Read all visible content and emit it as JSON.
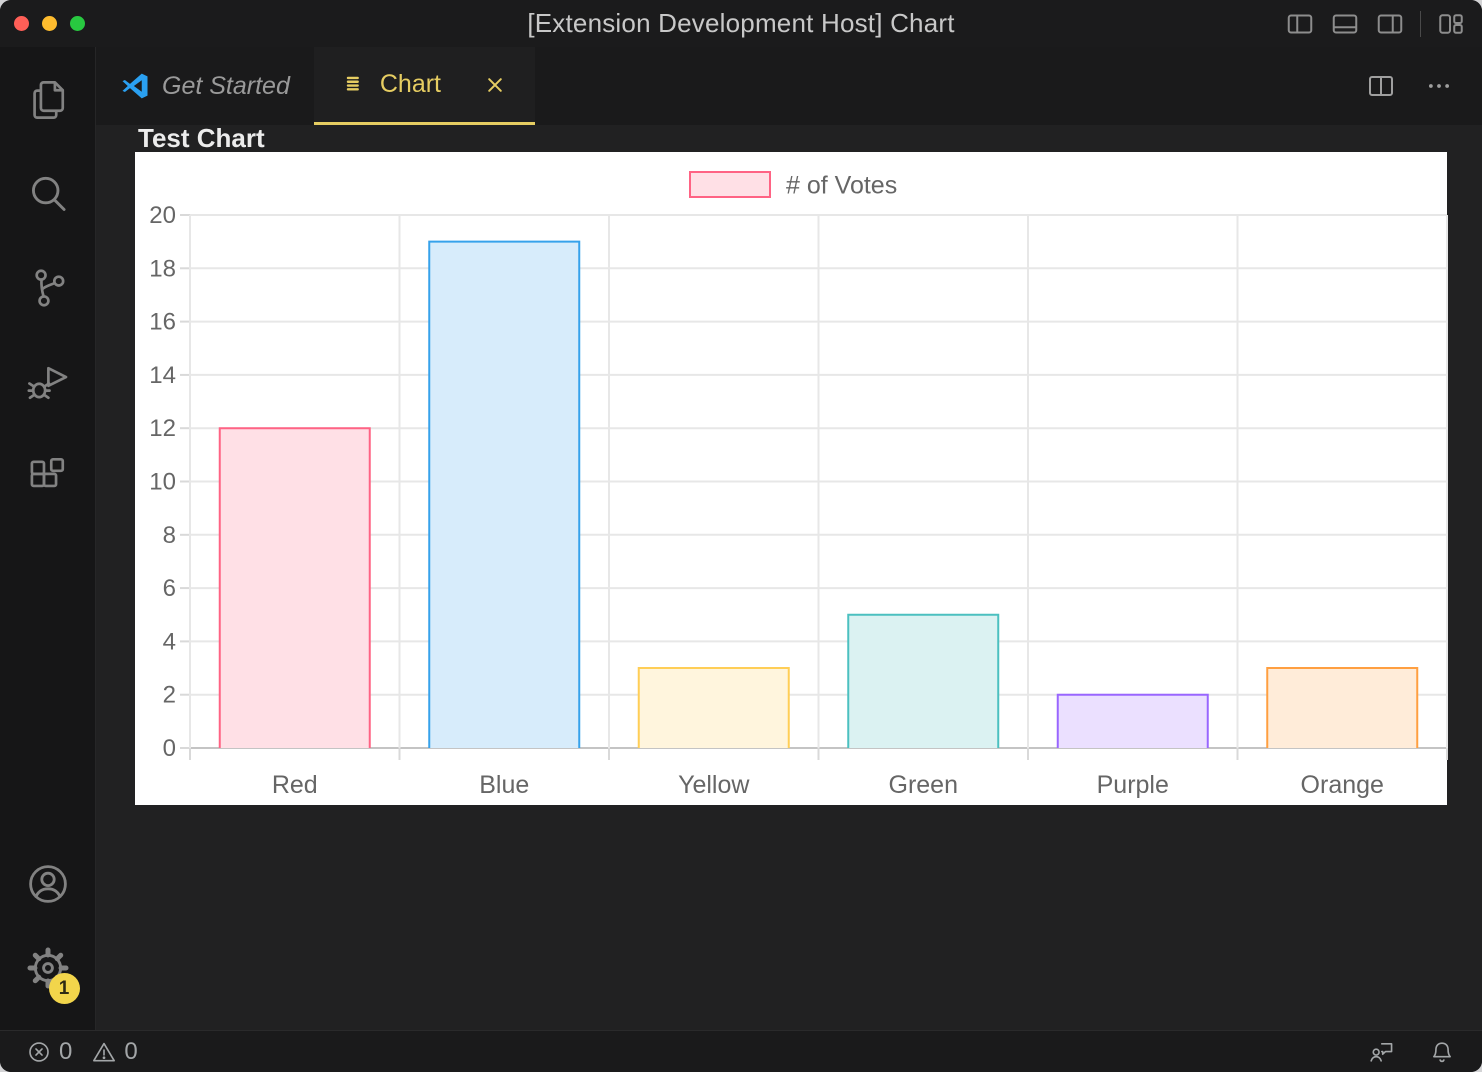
{
  "theme": {
    "accent_yellow": "#e6cd62",
    "traffic_red": "#ff5f57",
    "traffic_yellow": "#febc2e",
    "traffic_green": "#28c840",
    "badge_bg": "#f2d54b"
  },
  "titlebar": {
    "title": "[Extension Development Host] Chart",
    "window_controls": [
      "close",
      "minimize",
      "zoom"
    ],
    "layout_icons": [
      "toggle-primary-sidebar-icon",
      "toggle-panel-icon",
      "toggle-secondary-sidebar-icon",
      "customize-layout-icon"
    ]
  },
  "activity_bar": {
    "items": [
      {
        "icon": "files-icon"
      },
      {
        "icon": "search-icon"
      },
      {
        "icon": "source-control-icon"
      },
      {
        "icon": "run-and-debug-icon"
      },
      {
        "icon": "extensions-icon"
      }
    ],
    "bottom_items": [
      {
        "icon": "account-icon"
      },
      {
        "icon": "settings-gear-icon",
        "badge": "1"
      }
    ],
    "settings_badge": "1"
  },
  "tabs": [
    {
      "label": "Get Started",
      "icon": "vscode-logo-icon",
      "active": false
    },
    {
      "label": "Chart",
      "icon": "file-list-icon",
      "active": true,
      "closable": true
    }
  ],
  "tab_actions": [
    "split-editor-icon",
    "more-actions-icon"
  ],
  "webview": {
    "heading": "Test Chart"
  },
  "chart_data": {
    "type": "bar",
    "title": "Test Chart",
    "series_label": "# of Votes",
    "categories": [
      "Red",
      "Blue",
      "Yellow",
      "Green",
      "Purple",
      "Orange"
    ],
    "values": [
      12,
      19,
      3,
      5,
      2,
      3
    ],
    "border_colors": [
      "#ff6384",
      "#36a2eb",
      "#ffce56",
      "#4bc0c0",
      "#9966ff",
      "#ff9f40"
    ],
    "background_colors": [
      "#ffe0e6",
      "#d7ecfb",
      "#fff5dd",
      "#dbf2f2",
      "#ebe0ff",
      "#ffecd9"
    ],
    "ylim": [
      0,
      20
    ],
    "ytick_step": 2,
    "grid": true,
    "legend_position": "top"
  },
  "status_bar": {
    "error_count": "0",
    "warning_count": "0",
    "left_icons": [
      "error-icon",
      "warning-icon"
    ],
    "right_icons": [
      "feedback-icon",
      "bell-icon"
    ]
  }
}
